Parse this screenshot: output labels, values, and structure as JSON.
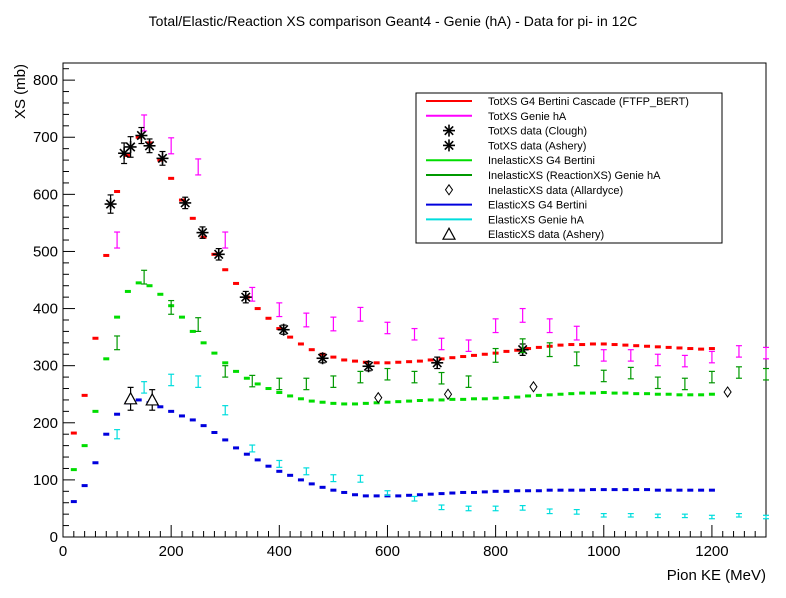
{
  "chart_data": {
    "type": "scatter",
    "title": "Total/Elastic/Reaction XS comparison Geant4 - Genie (hA) - Data for pi- in 12C",
    "xlabel": "Pion KE (MeV)",
    "ylabel": "XS (mb)",
    "xlim": [
      0,
      1300
    ],
    "ylim": [
      0,
      830
    ],
    "xticks": [
      0,
      200,
      400,
      600,
      800,
      1000,
      1200
    ],
    "yticks": [
      0,
      100,
      200,
      300,
      400,
      500,
      600,
      700,
      800
    ],
    "grid": false,
    "legend_position": "top-right",
    "series": [
      {
        "name": "TotXS G4 Bertini Cascade (FTFP_BERT)",
        "color": "#ff0000",
        "marker": "dash",
        "x": [
          20,
          40,
          60,
          80,
          100,
          120,
          140,
          160,
          180,
          200,
          220,
          240,
          260,
          280,
          300,
          320,
          340,
          360,
          380,
          400,
          420,
          440,
          460,
          480,
          500,
          520,
          540,
          560,
          580,
          600,
          620,
          640,
          660,
          680,
          700,
          720,
          740,
          760,
          780,
          800,
          820,
          840,
          860,
          880,
          900,
          920,
          940,
          960,
          980,
          1000,
          1020,
          1040,
          1060,
          1080,
          1100,
          1120,
          1140,
          1160,
          1180,
          1200
        ],
        "y": [
          182,
          248,
          348,
          493,
          605,
          668,
          700,
          690,
          660,
          628,
          590,
          558,
          525,
          495,
          468,
          444,
          420,
          400,
          383,
          365,
          350,
          338,
          328,
          320,
          315,
          310,
          308,
          306,
          305,
          305,
          306,
          307,
          308,
          310,
          312,
          314,
          316,
          318,
          320,
          322,
          325,
          327,
          330,
          332,
          334,
          336,
          337,
          337,
          338,
          338,
          337,
          336,
          335,
          334,
          333,
          332,
          331,
          330,
          329,
          330
        ]
      },
      {
        "name": "TotXS Genie hA",
        "color": "#ff00ff",
        "marker": "errorbar",
        "x": [
          100,
          150,
          200,
          250,
          300,
          350,
          400,
          450,
          500,
          550,
          600,
          650,
          700,
          750,
          800,
          850,
          900,
          950,
          1000,
          1050,
          1100,
          1150,
          1200,
          1250,
          1300
        ],
        "y": [
          520,
          725,
          685,
          648,
          520,
          425,
          398,
          380,
          373,
          390,
          366,
          355,
          338,
          335,
          370,
          388,
          370,
          357,
          318,
          318,
          310,
          308,
          315,
          325,
          322
        ],
        "err": [
          14,
          14,
          14,
          14,
          14,
          12,
          12,
          12,
          12,
          12,
          10,
          10,
          10,
          10,
          12,
          12,
          12,
          12,
          10,
          10,
          10,
          10,
          10,
          10,
          10
        ]
      },
      {
        "name": "TotXS data (Clough)",
        "color": "#000000",
        "marker": "star",
        "x": [
          88,
          113,
          125,
          145,
          160,
          184,
          226,
          258,
          288,
          338,
          408,
          480,
          565,
          692,
          850
        ],
        "y": [
          583,
          672,
          683,
          703,
          685,
          663,
          585,
          533,
          495,
          420,
          363,
          313,
          299,
          305,
          328
        ],
        "err": [
          16,
          18,
          18,
          14,
          12,
          12,
          10,
          10,
          10,
          10,
          8,
          8,
          8,
          10,
          10
        ]
      },
      {
        "name": "TotXS data (Ashery)",
        "color": "#000000",
        "marker": "star",
        "x": [],
        "y": []
      },
      {
        "name": "InelasticXS G4 Bertini",
        "color": "#00dd00",
        "marker": "dash",
        "x": [
          20,
          40,
          60,
          80,
          100,
          120,
          140,
          160,
          180,
          200,
          220,
          240,
          260,
          280,
          300,
          320,
          340,
          360,
          380,
          400,
          420,
          440,
          460,
          480,
          500,
          520,
          540,
          560,
          580,
          600,
          620,
          640,
          660,
          680,
          700,
          720,
          740,
          760,
          780,
          800,
          820,
          840,
          860,
          880,
          900,
          920,
          940,
          960,
          980,
          1000,
          1020,
          1040,
          1060,
          1080,
          1100,
          1120,
          1140,
          1160,
          1180,
          1200
        ],
        "y": [
          118,
          160,
          220,
          312,
          385,
          430,
          445,
          440,
          425,
          405,
          385,
          360,
          340,
          322,
          305,
          290,
          278,
          268,
          260,
          253,
          247,
          242,
          238,
          236,
          234,
          233,
          233,
          234,
          235,
          236,
          237,
          238,
          239,
          240,
          240,
          241,
          241,
          242,
          242,
          243,
          244,
          245,
          247,
          248,
          249,
          250,
          251,
          252,
          252,
          253,
          252,
          252,
          251,
          251,
          250,
          250,
          249,
          249,
          249,
          250
        ]
      },
      {
        "name": "InelasticXS (ReactionXS) Genie hA",
        "color": "#009900",
        "marker": "errorbar",
        "x": [
          100,
          150,
          200,
          250,
          300,
          350,
          400,
          450,
          500,
          550,
          600,
          650,
          700,
          750,
          800,
          850,
          900,
          950,
          1000,
          1050,
          1100,
          1150,
          1200,
          1250,
          1300
        ],
        "y": [
          340,
          455,
          402,
          372,
          290,
          273,
          268,
          268,
          272,
          280,
          285,
          280,
          278,
          272,
          318,
          335,
          328,
          312,
          282,
          287,
          270,
          268,
          280,
          288,
          285
        ],
        "err": [
          12,
          12,
          12,
          12,
          10,
          10,
          10,
          10,
          10,
          10,
          10,
          10,
          10,
          10,
          12,
          12,
          12,
          12,
          10,
          10,
          10,
          10,
          10,
          10,
          10
        ]
      },
      {
        "name": "InelasticXS data (Allardyce)",
        "color": "#000000",
        "marker": "diamond",
        "x": [
          583,
          712,
          870,
          1229
        ],
        "y": [
          244,
          250,
          263,
          254
        ]
      },
      {
        "name": "ElasticXS G4 Bertini",
        "color": "#0000dd",
        "marker": "dash",
        "x": [
          20,
          40,
          60,
          80,
          100,
          120,
          140,
          160,
          180,
          200,
          220,
          240,
          260,
          280,
          300,
          320,
          340,
          360,
          380,
          400,
          420,
          440,
          460,
          480,
          500,
          520,
          540,
          560,
          580,
          600,
          620,
          640,
          660,
          680,
          700,
          720,
          740,
          760,
          780,
          800,
          820,
          840,
          860,
          880,
          900,
          920,
          940,
          960,
          980,
          1000,
          1020,
          1040,
          1060,
          1080,
          1100,
          1120,
          1140,
          1160,
          1180,
          1200
        ],
        "y": [
          62,
          90,
          130,
          180,
          215,
          235,
          240,
          235,
          228,
          220,
          212,
          205,
          195,
          183,
          170,
          156,
          145,
          135,
          124,
          115,
          108,
          100,
          93,
          87,
          82,
          78,
          74,
          72,
          72,
          72,
          72,
          73,
          74,
          75,
          76,
          77,
          78,
          78,
          79,
          80,
          80,
          81,
          81,
          81,
          82,
          82,
          82,
          82,
          83,
          83,
          83,
          83,
          83,
          83,
          82,
          82,
          82,
          82,
          82,
          82
        ]
      },
      {
        "name": "ElasticXS Genie hA",
        "color": "#00dddd",
        "marker": "errorbar",
        "x": [
          100,
          150,
          200,
          250,
          300,
          350,
          400,
          450,
          500,
          550,
          600,
          650,
          700,
          750,
          800,
          850,
          900,
          950,
          1000,
          1050,
          1100,
          1150,
          1200,
          1250,
          1300
        ],
        "y": [
          180,
          262,
          275,
          272,
          222,
          155,
          128,
          115,
          103,
          102,
          77,
          67,
          52,
          50,
          50,
          51,
          45,
          44,
          38,
          38,
          37,
          37,
          35,
          38,
          35
        ],
        "err": [
          8,
          10,
          10,
          10,
          8,
          6,
          6,
          6,
          6,
          6,
          4,
          4,
          4,
          4,
          4,
          4,
          4,
          4,
          3,
          3,
          3,
          3,
          3,
          3,
          3
        ]
      },
      {
        "name": "ElasticXS data (Ashery)",
        "color": "#000000",
        "marker": "triangle",
        "x": [
          125,
          165
        ],
        "y": [
          242,
          240
        ],
        "err": [
          20,
          18
        ]
      }
    ]
  }
}
